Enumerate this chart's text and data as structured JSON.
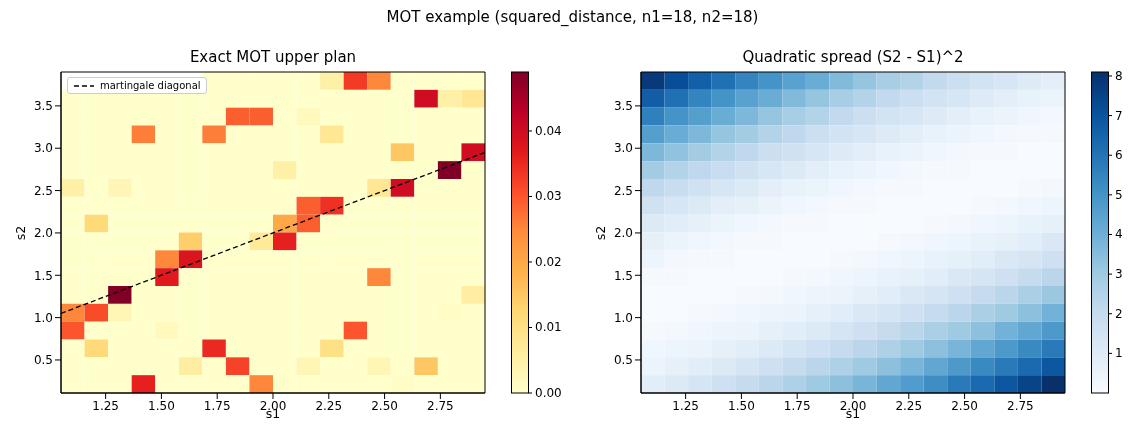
{
  "chart_data": [
    {
      "type": "heatmap",
      "title": "Exact MOT upper plan",
      "xlabel": "s1",
      "ylabel": "s2",
      "annotations": [
        "MOT example (squared_distance, n1=18, n2=18)"
      ],
      "xlim": [
        1.05,
        2.95
      ],
      "ylim": [
        0.11,
        3.9
      ],
      "xticks": [
        {
          "value": 1.25,
          "label": "1.25"
        },
        {
          "value": 1.5,
          "label": "1.50"
        },
        {
          "value": 1.75,
          "label": "1.75"
        },
        {
          "value": 2.0,
          "label": "2.00"
        },
        {
          "value": 2.25,
          "label": "2.25"
        },
        {
          "value": 2.5,
          "label": "2.50"
        },
        {
          "value": 2.75,
          "label": "2.75"
        }
      ],
      "yticks": [
        0.5,
        {
          "value": 1.0,
          "label": "1.0"
        },
        1.5,
        {
          "value": 2.0,
          "label": "2.0"
        },
        2.5,
        {
          "value": 3.0,
          "label": "3.0"
        },
        3.5
      ],
      "clim": [
        0,
        0.049
      ],
      "cticks": [
        {
          "value": 0,
          "label": "0.00"
        },
        {
          "value": 0.01,
          "label": "0.01"
        },
        {
          "value": 0.02,
          "label": "0.02"
        },
        {
          "value": 0.03,
          "label": "0.03"
        },
        {
          "value": 0.04,
          "label": "0.04"
        }
      ],
      "cells": [
        [
          null,
          null,
          null,
          null,
          null,
          null,
          0,
          0,
          0,
          0,
          0,
          0.005,
          0.033,
          0.025,
          0,
          0,
          0,
          0
        ],
        [
          0,
          0,
          0,
          0,
          0,
          0,
          0,
          0,
          0,
          0,
          0,
          0,
          0,
          0,
          0,
          0.04,
          0.005,
          0.008
        ],
        [
          0,
          0,
          0,
          0,
          0,
          0,
          0,
          0.029,
          0.029,
          0,
          0.002,
          0,
          0,
          0,
          0,
          0,
          0,
          0
        ],
        [
          0,
          0,
          0,
          0.026,
          0,
          0,
          0.026,
          0,
          0,
          0,
          0,
          0.008,
          0,
          0,
          0,
          0,
          0,
          0
        ],
        [
          0,
          0,
          0,
          0,
          0,
          0,
          0,
          0,
          0,
          0,
          0,
          0,
          0,
          0,
          0.015,
          0,
          0,
          0.04
        ],
        [
          0,
          0,
          0,
          0,
          0,
          0,
          0,
          0,
          0,
          0.005,
          0,
          0,
          0,
          0,
          0,
          0,
          0.049,
          0
        ],
        [
          0.005,
          0,
          0.003,
          0,
          0,
          0,
          0,
          0,
          0,
          0,
          0,
          0,
          0,
          0.008,
          0.04,
          0,
          0,
          0
        ],
        [
          0,
          0,
          0,
          0,
          0,
          0,
          0,
          0,
          0,
          0,
          0.029,
          0.034,
          0,
          0,
          0,
          0,
          0,
          0
        ],
        [
          0,
          0.012,
          0,
          0,
          0,
          0,
          0,
          0,
          0,
          0.02,
          0.029,
          0,
          0,
          0,
          0,
          0,
          0,
          0
        ],
        [
          0,
          0,
          0,
          0,
          0,
          0.014,
          0,
          0,
          0.007,
          0.036,
          0,
          0,
          0,
          0,
          0,
          0,
          0,
          0
        ],
        [
          0,
          0,
          0,
          0,
          0.025,
          0.038,
          0,
          0,
          0,
          0,
          0,
          0,
          0,
          0,
          0,
          0,
          0,
          0
        ],
        [
          0,
          0,
          0,
          0,
          0.037,
          0,
          0,
          0,
          0,
          0,
          0,
          0,
          0,
          0.025,
          0,
          0,
          0,
          0
        ],
        [
          0,
          0,
          0.049,
          0,
          0,
          0,
          0,
          0,
          0,
          0,
          0,
          0,
          0,
          0,
          0,
          0,
          0,
          0.006
        ],
        [
          0.025,
          0.031,
          0.003,
          0,
          0,
          0,
          0,
          0,
          0,
          0,
          0,
          0,
          0,
          0,
          0,
          0,
          0.001,
          0
        ],
        [
          0.03,
          0,
          0,
          0,
          0.002,
          0,
          0,
          0,
          0,
          0,
          0,
          0,
          0.03,
          0,
          0,
          0,
          0,
          0
        ],
        [
          0,
          0.012,
          0,
          0,
          0,
          0,
          0.035,
          0,
          0,
          0,
          0,
          0.01,
          0,
          0,
          0,
          0,
          0,
          0
        ],
        [
          0,
          0,
          0,
          0,
          0,
          0.006,
          0,
          0.032,
          0,
          0,
          0.003,
          0,
          0,
          0.003,
          0,
          0.015,
          0,
          0
        ],
        [
          0,
          0,
          0,
          0.036,
          0,
          0,
          0,
          0,
          0.025,
          0,
          0,
          0,
          0,
          0,
          0.001,
          0,
          0,
          0
        ]
      ],
      "series": [
        {
          "type": "line",
          "name": "martingale diagonal",
          "color": "#000000",
          "line_style": "dashed",
          "x": [
            1.05,
            2.95
          ],
          "values": [
            1.05,
            2.95
          ]
        }
      ],
      "legend": "top left"
    },
    {
      "type": "heatmap",
      "title": "Quadratic spread (S2 - S1)^2",
      "xlabel": "s1",
      "ylabel": "s2",
      "xlim": [
        1.05,
        2.95
      ],
      "ylim": [
        0.11,
        3.9
      ],
      "xticks": [
        {
          "value": 1.25,
          "label": "1.25"
        },
        {
          "value": 1.5,
          "label": "1.50"
        },
        {
          "value": 1.75,
          "label": "1.75"
        },
        {
          "value": 2.0,
          "label": "2.00"
        },
        {
          "value": 2.25,
          "label": "2.25"
        },
        {
          "value": 2.5,
          "label": "2.50"
        },
        {
          "value": 2.75,
          "label": "2.75"
        }
      ],
      "yticks": [
        0.5,
        {
          "value": 1.0,
          "label": "1.0"
        },
        1.5,
        {
          "value": 2.0,
          "label": "2.0"
        },
        2.5,
        {
          "value": 3.0,
          "label": "3.0"
        },
        3.5
      ],
      "clim": [
        0,
        8.1
      ],
      "cticks": [
        1,
        2,
        3,
        4,
        5,
        6,
        7,
        8
      ],
      "cells": [
        [
          7.8,
          7.2,
          6.6,
          6.1,
          5.5,
          5.0,
          4.5,
          4.1,
          3.6,
          3.2,
          2.8,
          2.5,
          2.1,
          1.8,
          1.5,
          1.3,
          1.0,
          0.8
        ],
        [
          6.7,
          6.1,
          5.5,
          5.0,
          4.5,
          4.1,
          3.6,
          3.2,
          2.8,
          2.5,
          2.1,
          1.8,
          1.5,
          1.3,
          1.0,
          0.8,
          0.6,
          0.5
        ],
        [
          5.6,
          5.0,
          4.6,
          4.1,
          3.7,
          3.2,
          2.8,
          2.5,
          2.1,
          1.8,
          1.5,
          1.3,
          1.0,
          0.8,
          0.6,
          0.5,
          0.3,
          0.2
        ],
        [
          4.6,
          4.1,
          3.7,
          3.2,
          2.9,
          2.5,
          2.2,
          1.8,
          1.5,
          1.3,
          1.0,
          0.8,
          0.6,
          0.5,
          0.3,
          0.2,
          0.1,
          0.1
        ],
        [
          3.7,
          3.3,
          2.9,
          2.5,
          2.2,
          1.8,
          1.6,
          1.3,
          1.0,
          0.8,
          0.6,
          0.5,
          0.3,
          0.2,
          0.1,
          0.1,
          0.0,
          0.0
        ],
        [
          2.9,
          2.5,
          2.2,
          1.9,
          1.6,
          1.3,
          1.1,
          0.8,
          0.6,
          0.5,
          0.3,
          0.2,
          0.1,
          0.1,
          0.0,
          0.0,
          0.0,
          0.0
        ],
        [
          2.2,
          1.9,
          1.6,
          1.3,
          1.1,
          0.8,
          0.6,
          0.5,
          0.3,
          0.2,
          0.1,
          0.1,
          0.0,
          0.0,
          0.0,
          0.0,
          0.1,
          0.2
        ],
        [
          1.6,
          1.3,
          1.1,
          0.8,
          0.7,
          0.5,
          0.3,
          0.2,
          0.1,
          0.1,
          0.0,
          0.0,
          0.0,
          0.0,
          0.1,
          0.2,
          0.3,
          0.4
        ],
        [
          1.1,
          0.9,
          0.7,
          0.5,
          0.3,
          0.2,
          0.1,
          0.1,
          0.0,
          0.0,
          0.0,
          0.0,
          0.1,
          0.2,
          0.3,
          0.4,
          0.6,
          0.7
        ],
        [
          0.7,
          0.5,
          0.3,
          0.2,
          0.1,
          0.1,
          0.0,
          0.0,
          0.0,
          0.0,
          0.1,
          0.2,
          0.3,
          0.4,
          0.6,
          0.7,
          0.9,
          1.2
        ],
        [
          0.4,
          0.2,
          0.1,
          0.1,
          0.0,
          0.0,
          0.0,
          0.0,
          0.1,
          0.2,
          0.3,
          0.4,
          0.6,
          0.7,
          0.9,
          1.2,
          1.4,
          1.7
        ],
        [
          0.1,
          0.1,
          0.0,
          0.0,
          0.0,
          0.0,
          0.1,
          0.2,
          0.3,
          0.4,
          0.6,
          0.7,
          0.9,
          1.2,
          1.4,
          1.7,
          2.0,
          2.3
        ],
        [
          0.0,
          0.0,
          0.0,
          0.0,
          0.1,
          0.2,
          0.3,
          0.4,
          0.5,
          0.7,
          0.9,
          1.2,
          1.4,
          1.7,
          2.0,
          2.3,
          2.7,
          3.1
        ],
        [
          0.0,
          0.0,
          0.1,
          0.2,
          0.3,
          0.4,
          0.5,
          0.7,
          0.9,
          1.2,
          1.4,
          1.7,
          2.0,
          2.3,
          2.7,
          3.0,
          3.4,
          3.9
        ],
        [
          0.1,
          0.2,
          0.3,
          0.4,
          0.5,
          0.7,
          0.9,
          1.1,
          1.4,
          1.7,
          2.0,
          2.3,
          2.7,
          3.0,
          3.4,
          3.9,
          4.3,
          4.8
        ],
        [
          0.3,
          0.4,
          0.5,
          0.7,
          0.9,
          1.1,
          1.4,
          1.7,
          2.0,
          2.3,
          2.6,
          3.0,
          3.4,
          3.8,
          4.3,
          4.8,
          5.3,
          5.8
        ],
        [
          0.5,
          0.7,
          0.9,
          1.1,
          1.4,
          1.7,
          2.0,
          2.3,
          2.6,
          3.0,
          3.4,
          3.8,
          4.3,
          4.8,
          5.3,
          5.8,
          6.3,
          6.9
        ],
        [
          0.9,
          1.1,
          1.4,
          1.7,
          2.0,
          2.3,
          2.6,
          3.0,
          3.4,
          3.8,
          4.3,
          4.7,
          5.2,
          5.8,
          6.3,
          6.9,
          7.5,
          8.1
        ]
      ]
    }
  ]
}
